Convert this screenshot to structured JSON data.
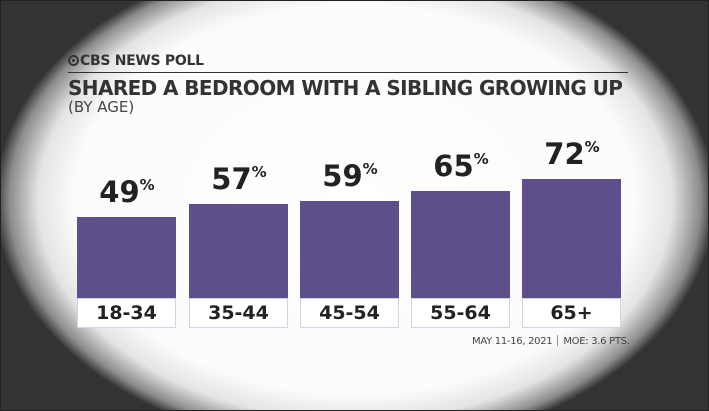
{
  "header": {
    "brand": "CBS NEWS POLL",
    "title": "SHARED A BEDROOM WITH A SIBLING GROWING UP",
    "subtitle": "(BY AGE)"
  },
  "footer": {
    "dates": "MAY 11-16, 2021",
    "moe": "MOE: 3.6 PTS."
  },
  "colors": {
    "bar": "#5e4f8a"
  },
  "chart_data": {
    "type": "bar",
    "title": "SHARED A BEDROOM WITH A SIBLING GROWING UP",
    "subtitle": "(BY AGE)",
    "categories": [
      "18-34",
      "35-44",
      "45-54",
      "55-64",
      "65+"
    ],
    "values": [
      49,
      57,
      59,
      65,
      72
    ],
    "unit": "%",
    "ylim": [
      0,
      100
    ],
    "xlabel": "",
    "ylabel": ""
  }
}
